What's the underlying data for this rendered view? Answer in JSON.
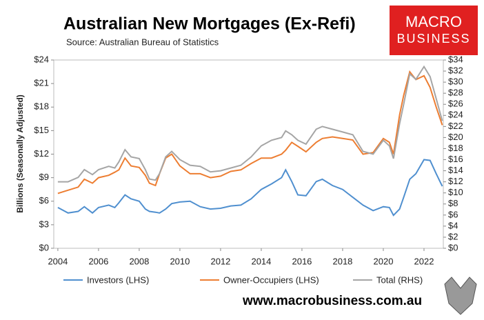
{
  "chart_data": {
    "type": "line",
    "title": "Australian New Mortgages (Ex-Refi)",
    "subtitle": "Source: Australian Bureau of Statistics",
    "y_label": "Billions (Seasonally Adjusted)",
    "logo": [
      "MACRO",
      "BUSINESS"
    ],
    "footer": "www.macrobusiness.com.au",
    "x": [
      2004,
      2004.5,
      2005,
      2005.3,
      2005.7,
      2006,
      2006.5,
      2006.8,
      2007,
      2007.3,
      2007.6,
      2008,
      2008.3,
      2008.5,
      2008.8,
      2009,
      2009.3,
      2009.6,
      2010,
      2010.5,
      2011,
      2011.5,
      2012,
      2012.5,
      2013,
      2013.5,
      2014,
      2014.5,
      2015,
      2015.2,
      2015.5,
      2015.8,
      2016.2,
      2016.7,
      2017,
      2017.5,
      2018,
      2018.5,
      2019,
      2019.5,
      2020,
      2020.3,
      2020.5,
      2020.8,
      2021,
      2021.3,
      2021.6,
      2022,
      2022.3,
      2022.6,
      2022.9
    ],
    "series": [
      {
        "name": "Investors (LHS)",
        "color": "#4f8fcf",
        "axis": "y",
        "values": [
          5.2,
          4.5,
          4.7,
          5.3,
          4.5,
          5.2,
          5.5,
          5.2,
          5.8,
          6.8,
          6.3,
          6.0,
          5.0,
          4.7,
          4.6,
          4.5,
          5.0,
          5.7,
          5.9,
          6.0,
          5.3,
          5.0,
          5.1,
          5.4,
          5.5,
          6.3,
          7.5,
          8.2,
          9.0,
          10.0,
          8.5,
          6.8,
          6.7,
          8.5,
          8.8,
          8.0,
          7.5,
          6.5,
          5.5,
          4.8,
          5.3,
          5.2,
          4.2,
          5.0,
          6.5,
          8.8,
          9.5,
          11.3,
          11.2,
          9.5,
          7.9
        ]
      },
      {
        "name": "Owner-Occupiers (LHS)",
        "color": "#ed7d31",
        "axis": "y",
        "values": [
          7.0,
          7.4,
          7.8,
          8.8,
          8.3,
          9.0,
          9.3,
          9.7,
          10.0,
          11.5,
          10.5,
          10.3,
          9.3,
          8.3,
          8.0,
          9.5,
          11.5,
          12.0,
          10.5,
          9.5,
          9.5,
          9.0,
          9.2,
          9.8,
          10.0,
          10.8,
          11.5,
          11.5,
          12.0,
          12.5,
          13.5,
          13.0,
          12.3,
          13.5,
          14.0,
          14.2,
          14.0,
          13.8,
          12.0,
          12.2,
          14.0,
          13.5,
          12.0,
          17.0,
          19.5,
          22.5,
          21.5,
          22.0,
          20.5,
          18.0,
          15.7
        ]
      },
      {
        "name": "Total (RHS)",
        "color": "#a5a5a5",
        "axis": "y2",
        "values": [
          12.0,
          12.0,
          12.8,
          14.2,
          13.3,
          14.2,
          14.8,
          14.5,
          15.6,
          17.8,
          16.5,
          16.2,
          14.2,
          12.5,
          12.3,
          13.5,
          16.5,
          17.5,
          16.0,
          15.0,
          14.8,
          13.8,
          14.0,
          14.5,
          15.0,
          16.5,
          18.5,
          19.5,
          20.0,
          21.2,
          20.5,
          19.5,
          18.8,
          21.5,
          22.0,
          21.5,
          21.0,
          20.5,
          17.5,
          17.0,
          19.5,
          18.5,
          16.2,
          22.5,
          26.0,
          31.5,
          30.5,
          32.8,
          31.0,
          27.0,
          23.0
        ]
      }
    ],
    "xlim": [
      2003.8,
      2022.95
    ],
    "xticks": [
      2004,
      2006,
      2008,
      2010,
      2012,
      2014,
      2016,
      2018,
      2020,
      2022
    ],
    "ylim": [
      0,
      24
    ],
    "yticks": [
      {
        "value": 0,
        "label": "$0"
      },
      {
        "value": 3,
        "label": "$3"
      },
      {
        "value": 6,
        "label": "$6"
      },
      {
        "value": 9,
        "label": "$9"
      },
      {
        "value": 12,
        "label": "$12"
      },
      {
        "value": 15,
        "label": "$15"
      },
      {
        "value": 18,
        "label": "$18"
      },
      {
        "value": 21,
        "label": "$21"
      },
      {
        "value": 24,
        "label": "$24"
      }
    ],
    "y2lim": [
      0,
      34
    ],
    "y2ticks": [
      {
        "value": 0,
        "label": "$0"
      },
      {
        "value": 2,
        "label": "$2"
      },
      {
        "value": 4,
        "label": "$4"
      },
      {
        "value": 6,
        "label": "$6"
      },
      {
        "value": 8,
        "label": "$8"
      },
      {
        "value": 10,
        "label": "$10"
      },
      {
        "value": 12,
        "label": "$12"
      },
      {
        "value": 14,
        "label": "$14"
      },
      {
        "value": 16,
        "label": "$16"
      },
      {
        "value": 18,
        "label": "$18"
      },
      {
        "value": 20,
        "label": "$20"
      },
      {
        "value": 22,
        "label": "$22"
      },
      {
        "value": 24,
        "label": "$24"
      },
      {
        "value": 26,
        "label": "$26"
      },
      {
        "value": 28,
        "label": "$28"
      },
      {
        "value": 30,
        "label": "$30"
      },
      {
        "value": 32,
        "label": "$32"
      },
      {
        "value": 34,
        "label": "$34"
      }
    ]
  }
}
